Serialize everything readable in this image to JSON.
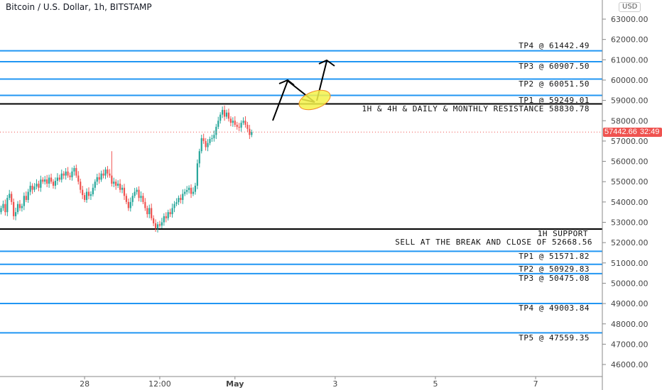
{
  "header": {
    "title": "Bitcoin / U.S. Dollar, 1h, BITSTAMP",
    "currency": "USD"
  },
  "colors": {
    "up": "#26a69a",
    "down": "#ef5350",
    "level_blue": "#2196f3",
    "level_black": "#000000",
    "highlight_fill": "#f5f24a",
    "highlight_stroke": "#f08a24"
  },
  "current_price": {
    "value": "57442.66",
    "countdown": "32:49",
    "price": 57442.66
  },
  "chart_data": {
    "type": "candlestick",
    "title": "Bitcoin / U.S. Dollar, 1h, BITSTAMP",
    "interval": "1h",
    "start": "2021-04-26 08:00",
    "ylim": [
      45500,
      63500
    ],
    "y_ticks": [
      46000,
      47000,
      48000,
      49000,
      50000,
      51000,
      52000,
      53000,
      54000,
      55000,
      56000,
      57000,
      58000,
      59000,
      60000,
      61000,
      62000,
      63000
    ],
    "y_tick_labels": [
      "46000.00",
      "47000.00",
      "48000.00",
      "49000.00",
      "50000.00",
      "51000.00",
      "52000.00",
      "53000.00",
      "54000.00",
      "55000.00",
      "56000.00",
      "57000.00",
      "58000.00",
      "59000.00",
      "60000.00",
      "61000.00",
      "62000.00",
      "63000.00"
    ],
    "x_ticks": [
      {
        "label": "28",
        "hours": 40
      },
      {
        "label": "12:00",
        "hours": 76
      },
      {
        "label": "May",
        "hours": 112
      },
      {
        "label": "3",
        "hours": 160
      },
      {
        "label": "5",
        "hours": 208
      },
      {
        "label": "7",
        "hours": 256
      }
    ],
    "x_range_hours": [
      -0.5,
      288
    ],
    "first_open": 53500,
    "close": [
      53700,
      53900,
      53500,
      54200,
      54400,
      54000,
      53300,
      53500,
      53900,
      53700,
      53800,
      54300,
      54100,
      54500,
      54800,
      54600,
      54760,
      54900,
      54700,
      55100,
      55000,
      55110,
      54900,
      55200,
      55000,
      54800,
      55040,
      55200,
      55100,
      55400,
      55300,
      55500,
      55300,
      55220,
      55500,
      55670,
      55300,
      55000,
      54600,
      54340,
      54100,
      54500,
      54300,
      54380,
      54700,
      55000,
      55220,
      55100,
      55400,
      55300,
      55600,
      55400,
      55300,
      54900,
      55000,
      54800,
      54900,
      54600,
      54700,
      54300,
      54000,
      53700,
      54000,
      54300,
      54500,
      54600,
      54200,
      54300,
      54000,
      53700,
      53400,
      53700,
      53200,
      52950,
      52700,
      52900,
      52840,
      53000,
      53300,
      53200,
      53500,
      53400,
      53700,
      53900,
      53990,
      54200,
      54100,
      54400,
      54500,
      54590,
      54700,
      54400,
      54500,
      54800,
      55900,
      56500,
      57140,
      57000,
      56700,
      56900,
      57100,
      57140,
      57300,
      57700,
      58000,
      58300,
      58530,
      58200,
      58400,
      58100,
      57900,
      58000,
      57800,
      57700,
      57660,
      57900,
      58000,
      57800,
      57600,
      57300,
      57442.66
    ],
    "notable_highs": [
      {
        "index": 53,
        "high": 56500
      }
    ],
    "levels": [
      {
        "price": 61442.49,
        "color": "blue",
        "label": "TP4 @ 61442.49",
        "pos": "above"
      },
      {
        "price": 60907.5,
        "color": "blue",
        "label": "TP3 @ 60907.50",
        "pos": "below"
      },
      {
        "price": 60051.5,
        "color": "blue",
        "label": "TP2 @ 60051.50",
        "pos": "below"
      },
      {
        "price": 59249.01,
        "color": "blue",
        "label": "TP1 @ 59249.01",
        "pos": "below"
      },
      {
        "price": 58830.78,
        "color": "black",
        "label": "1H & 4H & DAILY & MONTHLY RESISTANCE 58830.78",
        "pos": "below"
      },
      {
        "price": 52668.56,
        "color": "black",
        "label": "1H SUPPORT",
        "label2": "SELL AT THE BREAK AND CLOSE OF 52668.56",
        "pos": "below"
      },
      {
        "price": 51571.82,
        "color": "blue",
        "label": "TP1 @ 51571.82",
        "pos": "below"
      },
      {
        "price": 50929.83,
        "color": "blue",
        "label": "TP2 @ 50929.83",
        "pos": "below"
      },
      {
        "price": 50475.08,
        "color": "blue",
        "label": "TP3 @ 50475.08",
        "pos": "below"
      },
      {
        "price": 49003.84,
        "color": "blue",
        "label": "TP4 @ 49003.84",
        "pos": "below"
      },
      {
        "price": 47559.35,
        "color": "blue",
        "label": "TP5 @ 47559.35",
        "pos": "below"
      }
    ]
  }
}
